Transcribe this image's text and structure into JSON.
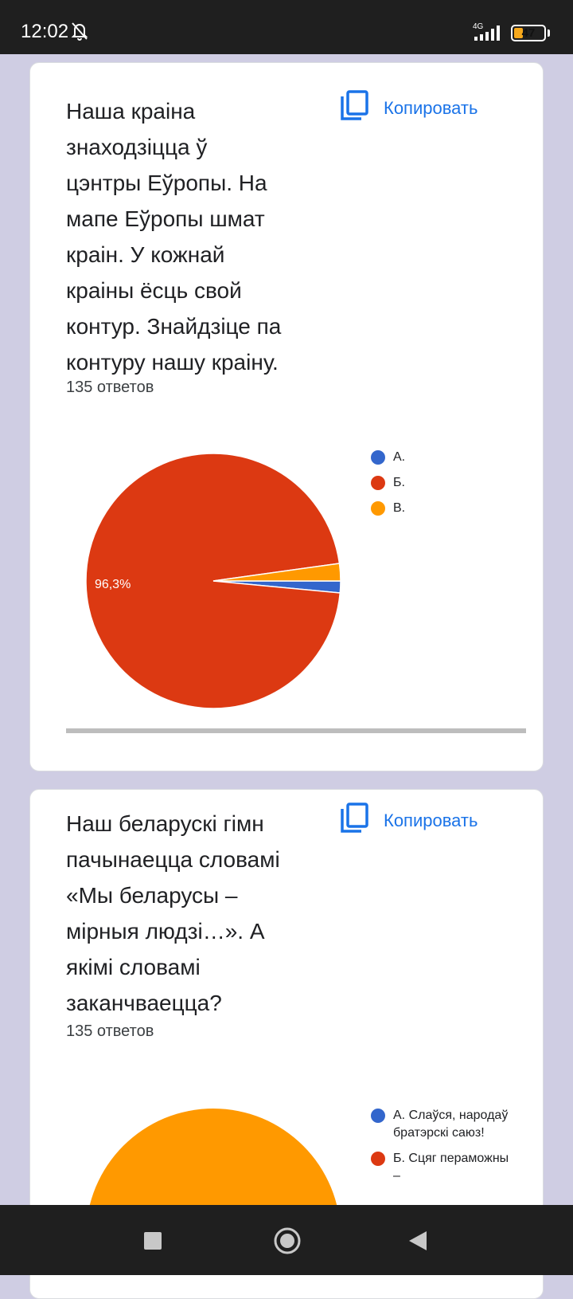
{
  "status_bar": {
    "time": "12:02",
    "network": "4G",
    "battery": "47"
  },
  "colors": {
    "a": "#3366cc",
    "b": "#dc3912",
    "c": "#ff9900",
    "accent": "#1a73e8"
  },
  "cards": [
    {
      "title": "Наша краіна знаходзіцца ў цэнтры Еўропы. На мапе Еўропы шмат краін. У кожнай краіны ёсць свой контур. Знайдзіце па контуру нашу краіну.",
      "title_lines": [
        "Наша краіна",
        "знаходзіцца ў",
        "цэнтры Еўропы. На",
        "мапе Еўропы шмат",
        "краін. У кожнай",
        "краіны ёсць свой",
        "контур. Знайдзіце па",
        "контуру нашу краіну."
      ],
      "copy_label": "Копировать",
      "copy_icon": "copy-icon",
      "responses": "135 ответов",
      "chart_data": {
        "type": "pie",
        "categories": [
          "А.",
          "Б.",
          "В."
        ],
        "values": [
          1.5,
          96.3,
          2.2
        ],
        "slice_labels": [
          "",
          "96,3%",
          ""
        ],
        "colors": [
          "#3366cc",
          "#dc3912",
          "#ff9900"
        ],
        "legend": "right"
      }
    },
    {
      "title": "Наш беларускі гімн пачынаецца словамі «Мы беларусы – мірныя людзі…». А якімі словамі заканчваецца?",
      "title_lines": [
        "Наш беларускі гімн",
        "пачынаецца словамі",
        "«Мы беларусы –",
        "мірныя людзі…». А",
        "якімі словамі",
        "заканчваецца?"
      ],
      "copy_label": "Копировать",
      "copy_icon": "copy-icon",
      "responses": "135 ответов",
      "chart_data": {
        "type": "pie",
        "legend_entries": [
          "А. Слаўся, народаў братэрскі саюз!",
          "Б. Сцяг пераможны –"
        ],
        "colors": [
          "#3366cc",
          "#dc3912",
          "#ff9900"
        ],
        "legend": "right"
      }
    }
  ],
  "nav_bar": {
    "recents_icon": "recents-icon",
    "home_icon": "home-icon",
    "back_icon": "back-icon"
  }
}
